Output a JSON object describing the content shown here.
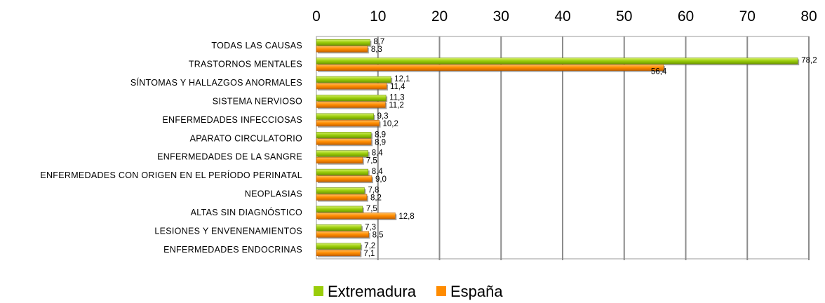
{
  "chart_data": {
    "type": "bar",
    "orientation": "horizontal",
    "title": "",
    "xlabel": "",
    "ylabel": "",
    "xlim": [
      0,
      80
    ],
    "x_ticks": [
      0,
      10,
      20,
      30,
      40,
      50,
      60,
      70,
      80
    ],
    "x_axis_position": "top",
    "grid": true,
    "legend_position": "bottom",
    "categories": [
      "TODAS LAS CAUSAS",
      "TRASTORNOS MENTALES",
      "SÍNTOMAS Y HALLAZGOS ANORMALES",
      "SISTEMA NERVIOSO",
      "ENFERMEDADES INFECCIOSAS",
      "APARATO CIRCULATORIO",
      "ENFERMEDADES DE LA SANGRE",
      "ENFERMEDADES CON ORIGEN EN EL PERÍODO PERINATAL",
      "NEOPLASIAS",
      "ALTAS SIN DIAGNÓSTICO",
      "LESIONES Y ENVENENAMIENTOS",
      "ENFERMEDADES ENDOCRINAS"
    ],
    "series": [
      {
        "name": "Extremadura",
        "color": "#9ACD0A",
        "values": [
          8.7,
          78.2,
          12.1,
          11.3,
          9.3,
          8.9,
          8.4,
          8.4,
          7.8,
          7.5,
          7.3,
          7.2
        ],
        "labels": [
          "8,7",
          "78,2",
          "12,1",
          "11,3",
          "9,3",
          "8,9",
          "8,4",
          "8,4",
          "7,8",
          "7,5",
          "7,3",
          "7,2"
        ]
      },
      {
        "name": "España",
        "color": "#FF8C00",
        "values": [
          8.3,
          56.4,
          11.4,
          11.2,
          10.2,
          8.9,
          7.5,
          9.0,
          8.2,
          12.8,
          8.5,
          7.1
        ],
        "labels": [
          "8,3",
          "56,4",
          "11,4",
          "11,2",
          "10,2",
          "8,9",
          "7,5",
          "9,0",
          "8,2",
          "12,8",
          "8,5",
          "7,1"
        ]
      }
    ]
  }
}
